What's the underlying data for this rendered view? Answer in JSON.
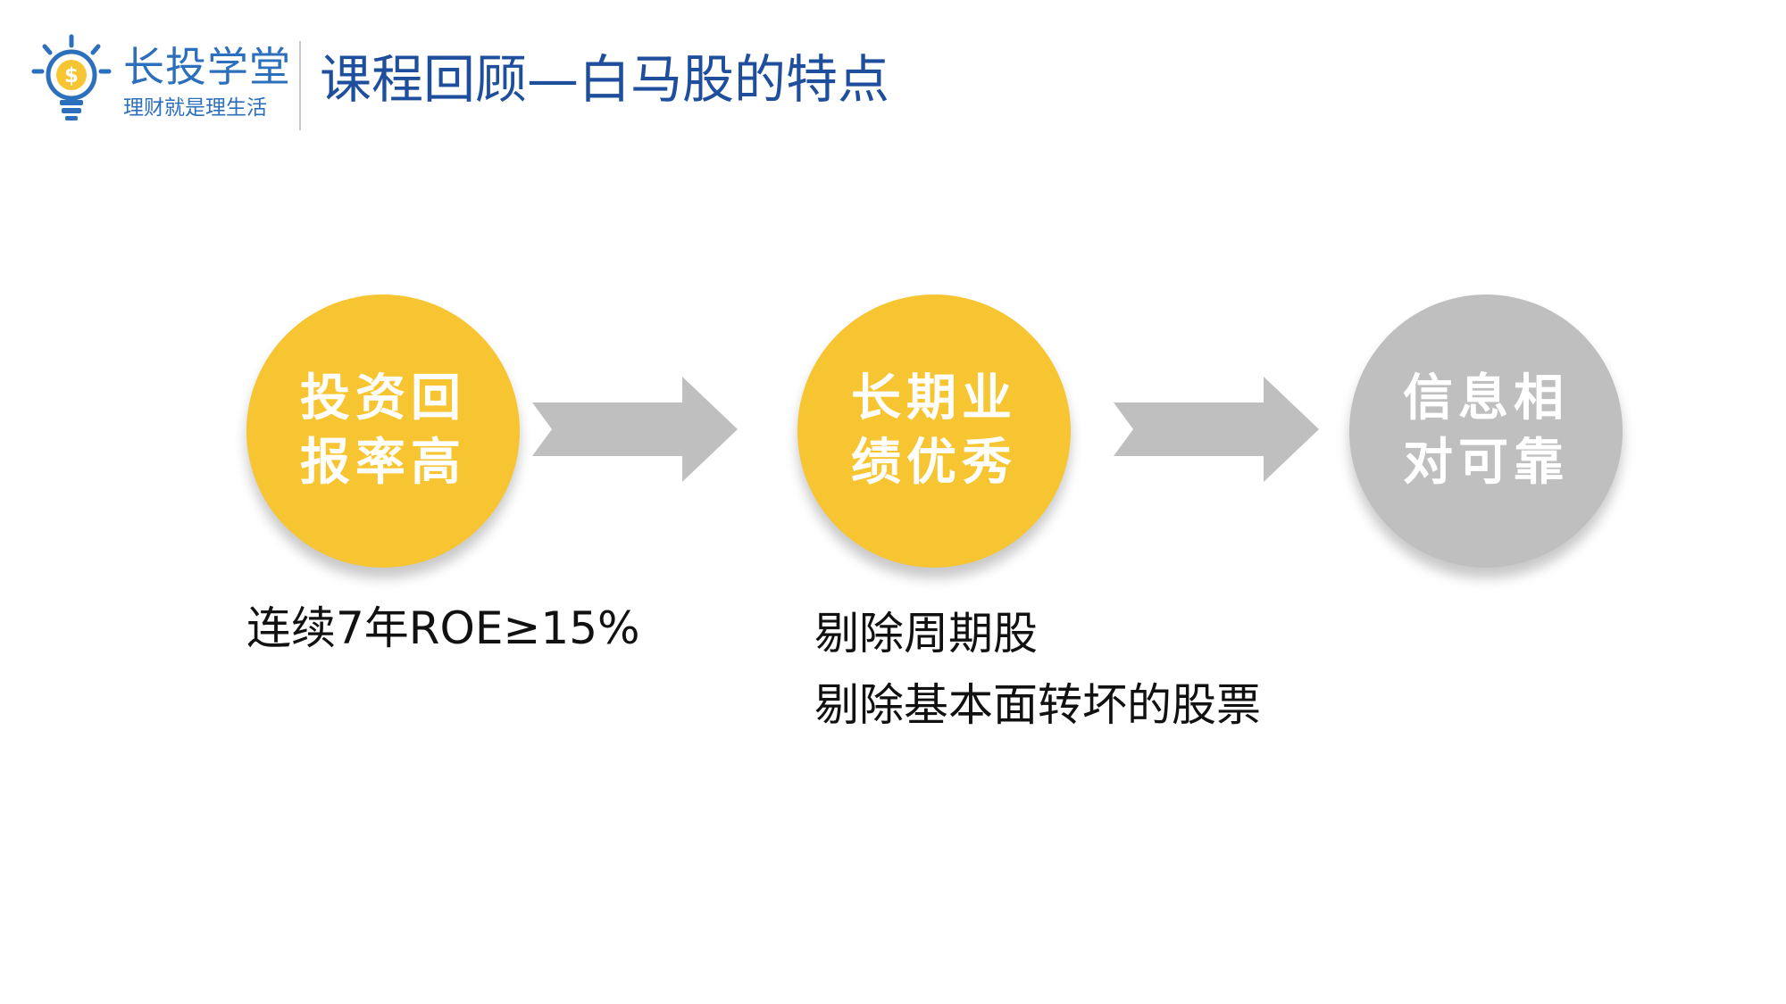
{
  "header": {
    "logo_name": "长投学堂",
    "logo_slogan": "理财就是理生活",
    "title": "课程回顾—白马股的特点"
  },
  "colors": {
    "brand_blue": "#2b6fbd",
    "title_blue": "#1f4e9c",
    "circle_yellow": "#f7c531",
    "circle_gray": "#bfbfbf",
    "arrow_gray": "#bfbfbf"
  },
  "steps": [
    {
      "line1": "投资回",
      "line2": "报率高",
      "color": "#f7c531"
    },
    {
      "line1": "长期业",
      "line2": "绩优秀",
      "color": "#f7c531"
    },
    {
      "line1": "信息相",
      "line2": "对可靠",
      "color": "#bfbfbf"
    }
  ],
  "notes": {
    "step1": "连续7年ROE≥15%",
    "step2": [
      "剔除周期股",
      "剔除基本面转坏的股票"
    ]
  }
}
